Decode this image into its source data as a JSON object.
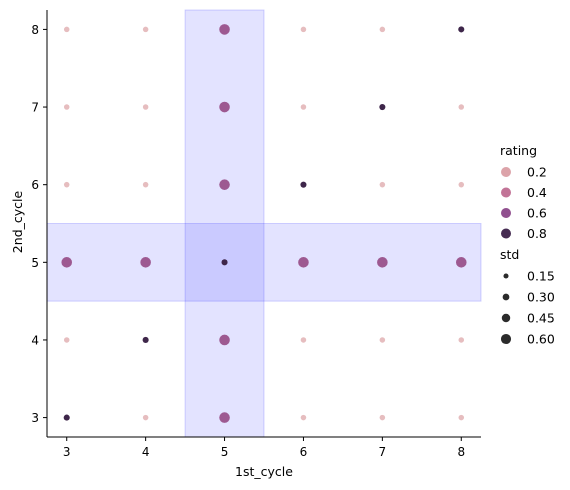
{
  "chart_data": {
    "type": "scatter",
    "xlabel": "1st_cycle",
    "ylabel": "2nd_cycle",
    "xlim": [
      2.75,
      8.25
    ],
    "ylim": [
      2.75,
      8.25
    ],
    "xticks": [
      3,
      4,
      5,
      6,
      7,
      8
    ],
    "yticks": [
      3,
      4,
      5,
      6,
      7,
      8
    ],
    "grid": false,
    "legend_position": "right",
    "highlight_bands": [
      {
        "axis": "x",
        "range": [
          4.5,
          5.5
        ],
        "color": "#0000ff",
        "opacity": 0.11
      },
      {
        "axis": "y",
        "range": [
          4.5,
          5.5
        ],
        "color": "#0000ff",
        "opacity": 0.11
      }
    ],
    "points": [
      {
        "x": 3,
        "y": 3,
        "rating": 0.85,
        "std": 0.15
      },
      {
        "x": 4,
        "y": 3,
        "rating": 0.1,
        "std": 0.1
      },
      {
        "x": 5,
        "y": 3,
        "rating": 0.55,
        "std": 0.55
      },
      {
        "x": 6,
        "y": 3,
        "rating": 0.1,
        "std": 0.1
      },
      {
        "x": 7,
        "y": 3,
        "rating": 0.1,
        "std": 0.1
      },
      {
        "x": 8,
        "y": 3,
        "rating": 0.1,
        "std": 0.1
      },
      {
        "x": 3,
        "y": 4,
        "rating": 0.1,
        "std": 0.1
      },
      {
        "x": 4,
        "y": 4,
        "rating": 0.85,
        "std": 0.15
      },
      {
        "x": 5,
        "y": 4,
        "rating": 0.55,
        "std": 0.55
      },
      {
        "x": 6,
        "y": 4,
        "rating": 0.1,
        "std": 0.1
      },
      {
        "x": 7,
        "y": 4,
        "rating": 0.1,
        "std": 0.1
      },
      {
        "x": 8,
        "y": 4,
        "rating": 0.1,
        "std": 0.1
      },
      {
        "x": 3,
        "y": 5,
        "rating": 0.55,
        "std": 0.55
      },
      {
        "x": 4,
        "y": 5,
        "rating": 0.55,
        "std": 0.55
      },
      {
        "x": 5,
        "y": 5,
        "rating": 0.85,
        "std": 0.15
      },
      {
        "x": 6,
        "y": 5,
        "rating": 0.55,
        "std": 0.55
      },
      {
        "x": 7,
        "y": 5,
        "rating": 0.55,
        "std": 0.55
      },
      {
        "x": 8,
        "y": 5,
        "rating": 0.55,
        "std": 0.55
      },
      {
        "x": 3,
        "y": 6,
        "rating": 0.1,
        "std": 0.1
      },
      {
        "x": 4,
        "y": 6,
        "rating": 0.1,
        "std": 0.1
      },
      {
        "x": 5,
        "y": 6,
        "rating": 0.55,
        "std": 0.55
      },
      {
        "x": 6,
        "y": 6,
        "rating": 0.85,
        "std": 0.15
      },
      {
        "x": 7,
        "y": 6,
        "rating": 0.1,
        "std": 0.1
      },
      {
        "x": 8,
        "y": 6,
        "rating": 0.1,
        "std": 0.1
      },
      {
        "x": 3,
        "y": 7,
        "rating": 0.1,
        "std": 0.1
      },
      {
        "x": 4,
        "y": 7,
        "rating": 0.1,
        "std": 0.1
      },
      {
        "x": 5,
        "y": 7,
        "rating": 0.55,
        "std": 0.55
      },
      {
        "x": 6,
        "y": 7,
        "rating": 0.1,
        "std": 0.1
      },
      {
        "x": 7,
        "y": 7,
        "rating": 0.85,
        "std": 0.15
      },
      {
        "x": 8,
        "y": 7,
        "rating": 0.1,
        "std": 0.1
      },
      {
        "x": 3,
        "y": 8,
        "rating": 0.1,
        "std": 0.1
      },
      {
        "x": 4,
        "y": 8,
        "rating": 0.1,
        "std": 0.1
      },
      {
        "x": 5,
        "y": 8,
        "rating": 0.55,
        "std": 0.55
      },
      {
        "x": 6,
        "y": 8,
        "rating": 0.1,
        "std": 0.1
      },
      {
        "x": 7,
        "y": 8,
        "rating": 0.1,
        "std": 0.1
      },
      {
        "x": 8,
        "y": 8,
        "rating": 0.85,
        "std": 0.15
      }
    ],
    "legend": {
      "hue_title": "rating",
      "hue_entries": [
        {
          "label": "0.2",
          "color": "#dca3a9"
        },
        {
          "label": "0.4",
          "color": "#c27497"
        },
        {
          "label": "0.6",
          "color": "#91508f"
        },
        {
          "label": "0.8",
          "color": "#462c52"
        }
      ],
      "size_title": "std",
      "size_entries": [
        {
          "label": "0.15",
          "std": 0.15
        },
        {
          "label": "0.30",
          "std": 0.3
        },
        {
          "label": "0.45",
          "std": 0.45
        },
        {
          "label": "0.60",
          "std": 0.6
        }
      ]
    }
  }
}
